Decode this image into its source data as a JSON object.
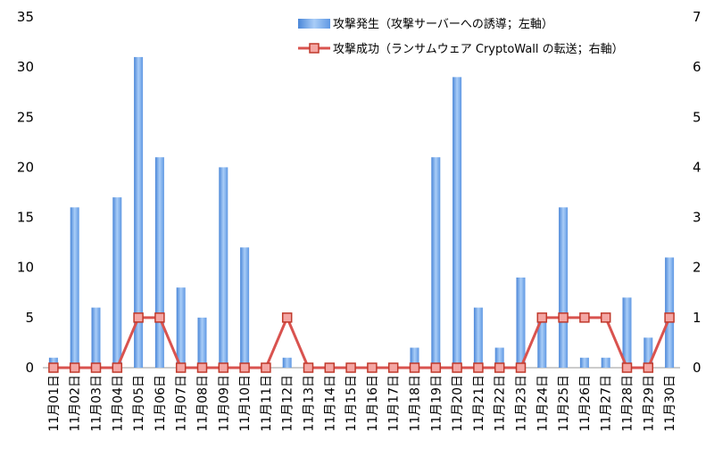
{
  "chart_data": {
    "type": "bar+line",
    "categories": [
      "11月01日",
      "11月02日",
      "11月03日",
      "11月04日",
      "11月05日",
      "11月06日",
      "11月07日",
      "11月08日",
      "11月09日",
      "11月10日",
      "11月11日",
      "11月12日",
      "11月13日",
      "11月14日",
      "11月15日",
      "11月16日",
      "11月17日",
      "11月18日",
      "11月19日",
      "11月20日",
      "11月21日",
      "11月22日",
      "11月23日",
      "11月24日",
      "11月25日",
      "11月26日",
      "11月27日",
      "11月28日",
      "11月29日",
      "11月30日"
    ],
    "series": [
      {
        "name": "攻撃発生（攻撃サーバーへの誘導；左軸）",
        "type": "bar",
        "axis": "left",
        "color": "#6fa8e8",
        "values": [
          1,
          16,
          6,
          17,
          31,
          21,
          8,
          5,
          20,
          12,
          0,
          1,
          0,
          0,
          0,
          0,
          0,
          2,
          21,
          29,
          6,
          2,
          9,
          5,
          16,
          1,
          1,
          7,
          3,
          11
        ]
      },
      {
        "name": "攻撃成功（ランサムウェア CryptoWall の転送；右軸）",
        "type": "line",
        "axis": "right",
        "color": "#d9534f",
        "values": [
          0,
          0,
          0,
          0,
          1,
          1,
          0,
          0,
          0,
          0,
          0,
          1,
          0,
          0,
          0,
          0,
          0,
          0,
          0,
          0,
          0,
          0,
          0,
          1,
          1,
          1,
          1,
          0,
          0,
          1
        ]
      }
    ],
    "y_left": {
      "min": 0,
      "max": 35,
      "ticks": [
        0,
        5,
        10,
        15,
        20,
        25,
        30,
        35
      ]
    },
    "y_right": {
      "min": 0,
      "max": 7,
      "ticks": [
        0,
        1,
        2,
        3,
        4,
        5,
        6,
        7
      ]
    },
    "legend_position": "top-right",
    "grid": false
  }
}
